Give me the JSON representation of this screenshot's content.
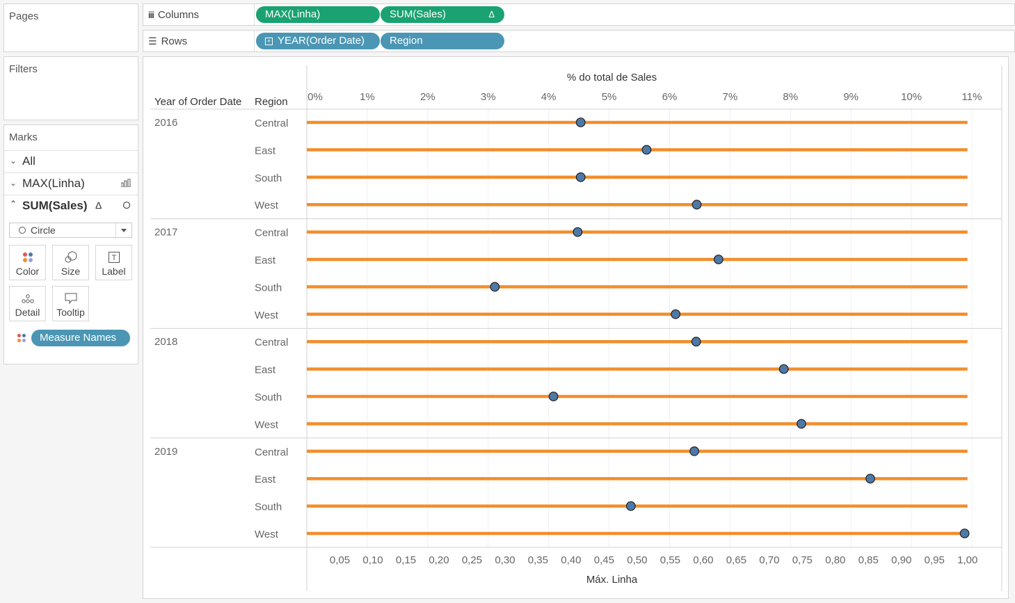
{
  "left": {
    "pages_title": "Pages",
    "filters_title": "Filters",
    "marks_title": "Marks",
    "marks_rows": [
      {
        "label": "All",
        "expanded": false
      },
      {
        "label": "MAX(Linha)",
        "expanded": false
      },
      {
        "label": "SUM(Sales)",
        "delta": "Δ",
        "expanded": true
      }
    ],
    "mark_type": "Circle",
    "buttons": [
      "Color",
      "Size",
      "Label",
      "Detail",
      "Tooltip"
    ],
    "measure_pill": "Measure Names"
  },
  "shelves": {
    "columns_label": "Columns",
    "rows_label": "Rows",
    "columns_pills": [
      "MAX(Linha)",
      "SUM(Sales)"
    ],
    "columns_delta": "Δ",
    "rows_pills": [
      "YEAR(Order Date)",
      "Region"
    ]
  },
  "colors": {
    "line": "#f28e2b",
    "dot": "#4e79a7",
    "green_pill": "#1aa272",
    "blue_pill": "#4a96b4"
  },
  "chart_data": {
    "type": "scatter",
    "row_headers": [
      "Year of Order Date",
      "Region"
    ],
    "years": [
      "2016",
      "2017",
      "2018",
      "2019"
    ],
    "regions": [
      "Central",
      "East",
      "South",
      "West"
    ],
    "top_axis": {
      "title": "% do total de Sales",
      "ticks": [
        "0%",
        "1%",
        "2%",
        "3%",
        "4%",
        "5%",
        "6%",
        "7%",
        "8%",
        "9%",
        "10%",
        "11%"
      ],
      "range": [
        0,
        11.3
      ]
    },
    "bottom_axis": {
      "title": "Máx. Linha",
      "ticks": [
        "0,05",
        "0,10",
        "0,15",
        "0,20",
        "0,25",
        "0,30",
        "0,35",
        "0,40",
        "0,45",
        "0,50",
        "0,55",
        "0,60",
        "0,65",
        "0,70",
        "0,75",
        "0,80",
        "0,85",
        "0,90",
        "0,95",
        "1,00"
      ],
      "range": [
        0,
        1.005
      ]
    },
    "series": [
      {
        "name": "MAX(Linha)",
        "mark": "line",
        "values": [
          1,
          1,
          1,
          1,
          1,
          1,
          1,
          1,
          1,
          1,
          1,
          1,
          1,
          1,
          1,
          1
        ]
      },
      {
        "name": "SUM(Sales)",
        "mark": "circle",
        "values": [
          4.53,
          5.62,
          4.53,
          6.45,
          4.48,
          6.81,
          3.11,
          6.1,
          6.44,
          7.89,
          4.08,
          8.18,
          6.41,
          9.32,
          5.36,
          10.88
        ]
      }
    ]
  }
}
